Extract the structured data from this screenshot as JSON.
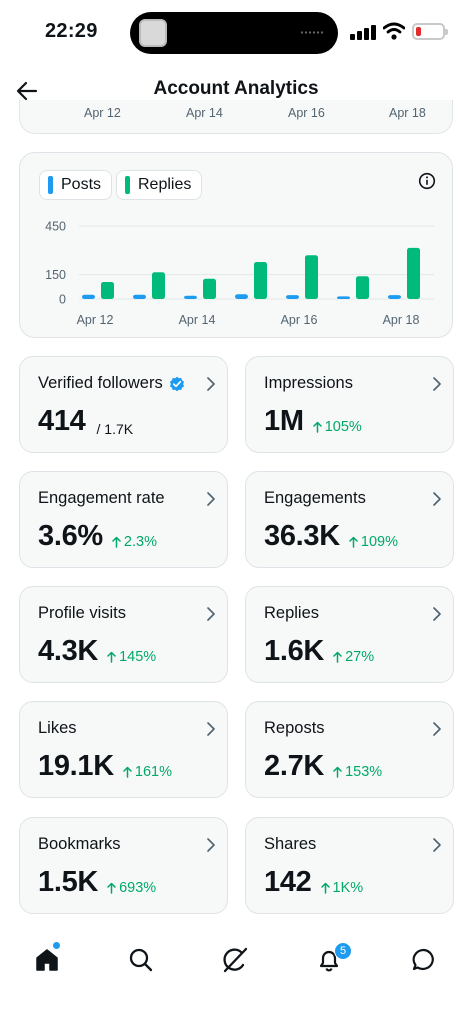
{
  "status_bar": {
    "time": "22:29"
  },
  "header": {
    "title": "Account Analytics"
  },
  "prev_chart_axis": [
    "Apr 12",
    "Apr 14",
    "Apr 16",
    "Apr 18"
  ],
  "chart_data": {
    "type": "bar",
    "categories": [
      "Apr 12",
      "Apr 13",
      "Apr 14",
      "Apr 15",
      "Apr 16",
      "Apr 17",
      "Apr 18"
    ],
    "x_tick_labels": [
      "Apr 12",
      "Apr 14",
      "Apr 16",
      "Apr 18"
    ],
    "series": [
      {
        "name": "Posts",
        "color": "#1d9bf0",
        "values": [
          26,
          26,
          20,
          29,
          24,
          16,
          24
        ]
      },
      {
        "name": "Replies",
        "color": "#00ba7c",
        "values": [
          105,
          165,
          125,
          228,
          270,
          140,
          315
        ]
      }
    ],
    "y_ticks": [
      "450",
      "150",
      "0"
    ],
    "ylim": [
      0,
      450
    ],
    "grid": true,
    "legend": "top-left"
  },
  "metrics": [
    {
      "label": "Verified followers",
      "value": "414",
      "sub": "/ 1.7K",
      "verified": true
    },
    {
      "label": "Impressions",
      "value": "1M",
      "delta": "105%"
    },
    {
      "label": "Engagement rate",
      "value": "3.6%",
      "delta": "2.3%"
    },
    {
      "label": "Engagements",
      "value": "36.3K",
      "delta": "109%"
    },
    {
      "label": "Profile visits",
      "value": "4.3K",
      "delta": "145%"
    },
    {
      "label": "Replies",
      "value": "1.6K",
      "delta": "27%"
    },
    {
      "label": "Likes",
      "value": "19.1K",
      "delta": "161%"
    },
    {
      "label": "Reposts",
      "value": "2.7K",
      "delta": "153%"
    },
    {
      "label": "Bookmarks",
      "value": "1.5K",
      "delta": "693%"
    },
    {
      "label": "Shares",
      "value": "142",
      "delta": "1K%"
    }
  ],
  "nav": {
    "notifications_badge": "5",
    "icons": [
      "home-icon",
      "search-icon",
      "grok-icon",
      "bell-icon",
      "message-icon"
    ]
  }
}
